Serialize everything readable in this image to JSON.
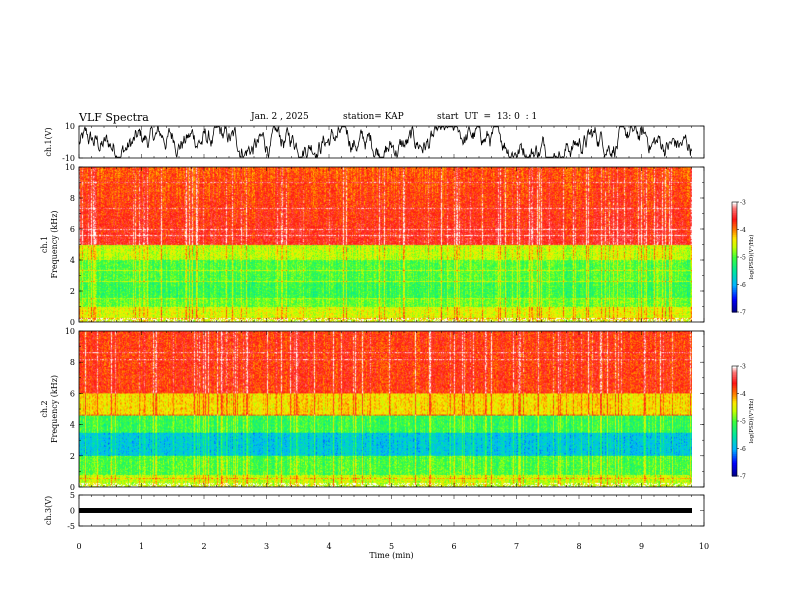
{
  "header": {
    "title": "VLF Spectra",
    "date": "Jan. 2 , 2025",
    "station": "station= KAP",
    "start": "start  UT  =  13: 0  : 1"
  },
  "chart_data": [
    {
      "type": "line",
      "name": "ch1-waveform",
      "ylabel": "ch.1(V)",
      "ylim": [
        -10,
        10
      ],
      "yticks": [
        "10",
        "-10"
      ],
      "xlim": [
        0,
        10
      ]
    },
    {
      "type": "heatmap",
      "name": "ch1-spectrogram",
      "ylabel": [
        "ch.1",
        "Frequency  (kHz)"
      ],
      "ylim": [
        0,
        10
      ],
      "yticks": [
        "10",
        "8",
        "6",
        "4",
        "2",
        "0"
      ],
      "xlim": [
        0,
        10
      ],
      "colorbar": {
        "label": "log(PSD)(V²/Hz)",
        "range": [
          -7,
          -3
        ],
        "ticks": [
          "-3",
          "-4",
          "-5",
          "-6",
          "-7"
        ]
      }
    },
    {
      "type": "heatmap",
      "name": "ch2-spectrogram",
      "ylabel": [
        "ch.2",
        "Frequency  (kHz)"
      ],
      "ylim": [
        0,
        10
      ],
      "yticks": [
        "10",
        "8",
        "6",
        "4",
        "2",
        "0"
      ],
      "xlim": [
        0,
        10
      ],
      "colorbar": {
        "label": "log(PSD)(V²/Hz)",
        "range": [
          -7,
          -3
        ],
        "ticks": [
          "-3",
          "-4",
          "-5",
          "-6",
          "-7"
        ]
      }
    },
    {
      "type": "line",
      "name": "ch3-waveform",
      "ylabel": "ch.3(V)",
      "ylim": [
        -5,
        5
      ],
      "yticks": [
        "5",
        "0",
        "-5"
      ],
      "xlim": [
        0,
        10
      ],
      "xlabel": "Time  (min)",
      "xticks": [
        "0",
        "1",
        "2",
        "3",
        "4",
        "5",
        "6",
        "7",
        "8",
        "9",
        "10"
      ]
    }
  ],
  "colors": {
    "psd_scale": [
      "#000080",
      "#0000ff",
      "#00b4ff",
      "#00ff80",
      "#80ff00",
      "#ffff00",
      "#ff8000",
      "#ff0000",
      "#ffffff"
    ],
    "waveform": "#000000"
  }
}
